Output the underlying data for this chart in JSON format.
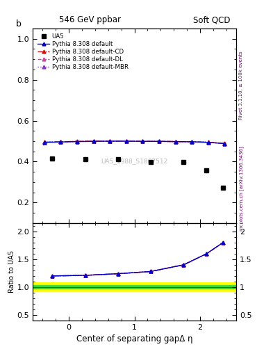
{
  "title_left": "546 GeV ppbar",
  "title_right": "Soft QCD",
  "ylabel_main": "b",
  "ylabel_ratio": "Ratio to UA5",
  "xlabel": "Center of separating gapΔ η",
  "watermark": "UA5_1988_S1867512",
  "right_label_top": "Rivet 3.1.10, ≥ 100k events",
  "right_label_bottom": "mcplots.cern.ch [arXiv:1306.3436]",
  "ua5_x": [
    -0.25,
    0.25,
    0.75,
    1.25,
    1.75,
    2.1,
    2.35
  ],
  "ua5_y": [
    0.415,
    0.413,
    0.413,
    0.398,
    0.398,
    0.357,
    0.272
  ],
  "pythia_x": [
    -0.375,
    -0.125,
    0.125,
    0.375,
    0.625,
    0.875,
    1.125,
    1.375,
    1.625,
    1.875,
    2.125,
    2.375
  ],
  "pythia_default_y": [
    0.494,
    0.496,
    0.498,
    0.499,
    0.5,
    0.5,
    0.499,
    0.499,
    0.498,
    0.497,
    0.494,
    0.488
  ],
  "pythia_cd_y": [
    0.495,
    0.497,
    0.499,
    0.5,
    0.5,
    0.5,
    0.499,
    0.499,
    0.498,
    0.497,
    0.495,
    0.489
  ],
  "pythia_dl_y": [
    0.495,
    0.497,
    0.499,
    0.5,
    0.5,
    0.5,
    0.499,
    0.499,
    0.498,
    0.497,
    0.495,
    0.489
  ],
  "pythia_mbr_y": [
    0.494,
    0.496,
    0.498,
    0.499,
    0.5,
    0.5,
    0.499,
    0.499,
    0.498,
    0.497,
    0.494,
    0.488
  ],
  "ratio_x": [
    -0.25,
    0.25,
    0.75,
    1.25,
    1.75,
    2.1,
    2.35
  ],
  "ratio_default_y": [
    1.2,
    1.21,
    1.24,
    1.28,
    1.4,
    1.6,
    1.8
  ],
  "ratio_cd_y": [
    1.2,
    1.21,
    1.24,
    1.28,
    1.4,
    1.6,
    1.8
  ],
  "ratio_dl_y": [
    1.2,
    1.21,
    1.24,
    1.28,
    1.4,
    1.6,
    1.8
  ],
  "ratio_mbr_y": [
    1.2,
    1.21,
    1.24,
    1.28,
    1.4,
    1.6,
    1.8
  ],
  "ylim_main": [
    0.1,
    1.05
  ],
  "ylim_ratio": [
    0.4,
    2.15
  ],
  "xlim": [
    -0.55,
    2.55
  ],
  "color_default": "#0000cc",
  "color_cd": "#cc1111",
  "color_dl": "#cc44aa",
  "color_mbr": "#8833cc",
  "green_band": [
    0.97,
    1.03
  ],
  "yellow_band": [
    0.92,
    1.08
  ],
  "yticks_main": [
    0.2,
    0.4,
    0.6,
    0.8,
    1.0
  ],
  "xticks": [
    0,
    1,
    2
  ],
  "yticks_ratio": [
    0.5,
    1.0,
    1.5,
    2.0
  ]
}
